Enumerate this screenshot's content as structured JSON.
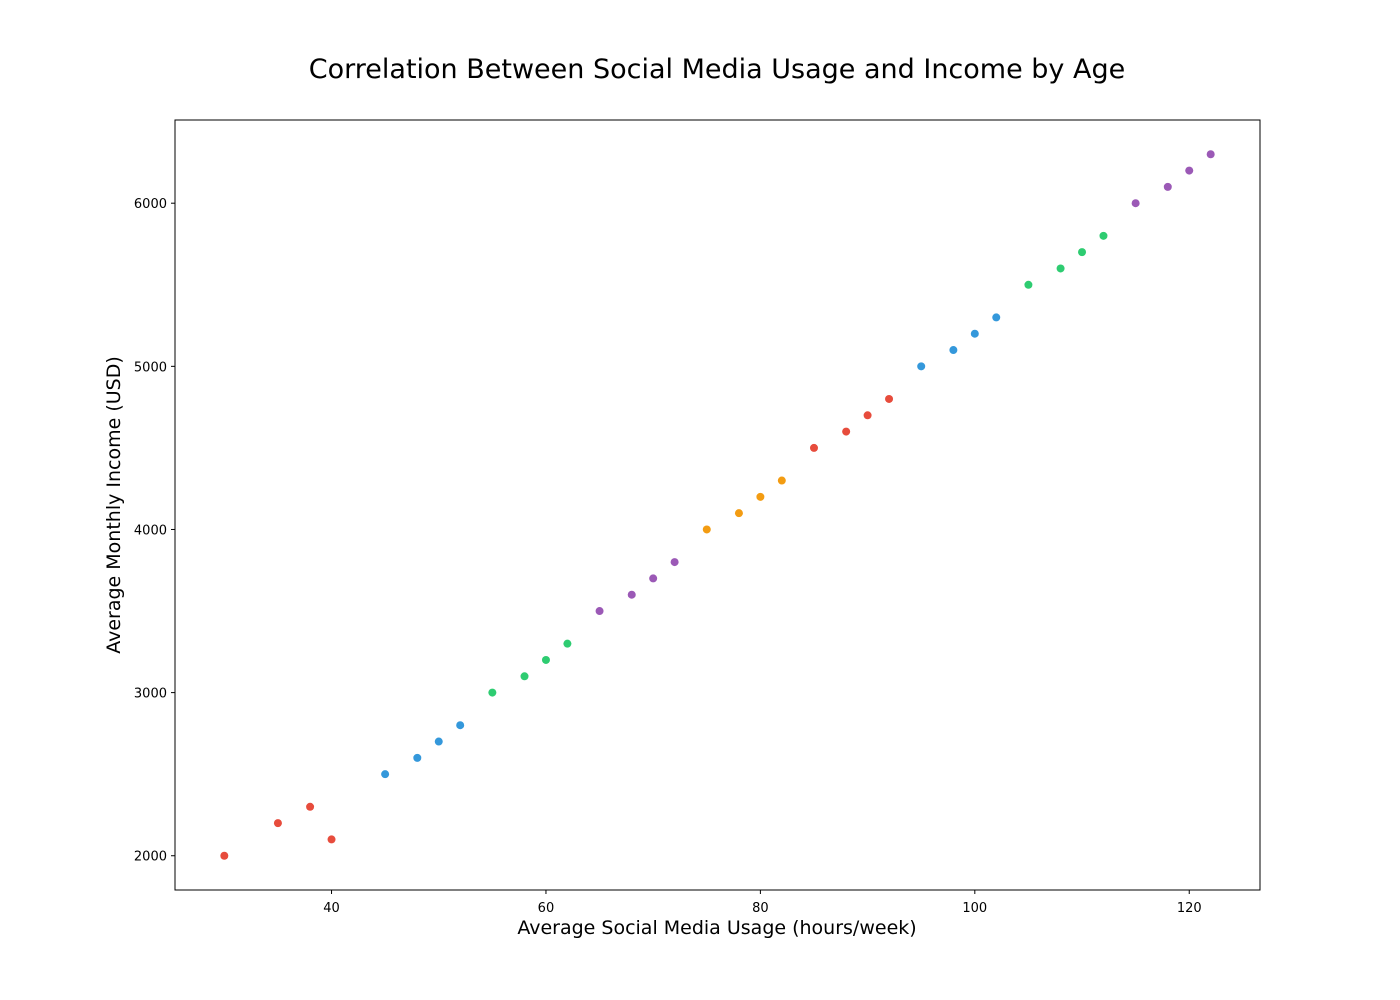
{
  "chart_data": {
    "type": "scatter",
    "title": "Correlation Between Social Media Usage and Income by Age",
    "xlabel": "Average Social Media Usage (hours/week)",
    "ylabel": "Average Monthly Income (USD)",
    "xlim": [
      25.4,
      126.6
    ],
    "ylim": [
      1790,
      6510
    ],
    "xticks": [
      40,
      60,
      80,
      100,
      120
    ],
    "yticks": [
      2000,
      3000,
      4000,
      5000,
      6000
    ],
    "grid": false,
    "legend": "none",
    "series": [
      {
        "color": "#e74c3c",
        "points": [
          [
            30,
            2000
          ],
          [
            35,
            2200
          ],
          [
            38,
            2300
          ],
          [
            40,
            2100
          ]
        ]
      },
      {
        "color": "#3498db",
        "points": [
          [
            45,
            2500
          ],
          [
            48,
            2600
          ],
          [
            50,
            2700
          ],
          [
            52,
            2800
          ]
        ]
      },
      {
        "color": "#2ecc71",
        "points": [
          [
            55,
            3000
          ],
          [
            58,
            3100
          ],
          [
            60,
            3200
          ],
          [
            62,
            3300
          ]
        ]
      },
      {
        "color": "#9b59b6",
        "points": [
          [
            65,
            3500
          ],
          [
            68,
            3600
          ],
          [
            70,
            3700
          ],
          [
            72,
            3800
          ]
        ]
      },
      {
        "color": "#f39c12",
        "points": [
          [
            75,
            4000
          ],
          [
            78,
            4100
          ],
          [
            80,
            4200
          ],
          [
            82,
            4300
          ]
        ]
      },
      {
        "color": "#e74c3c",
        "points": [
          [
            85,
            4500
          ],
          [
            88,
            4600
          ],
          [
            90,
            4700
          ],
          [
            92,
            4800
          ]
        ]
      },
      {
        "color": "#3498db",
        "points": [
          [
            95,
            5000
          ],
          [
            98,
            5100
          ],
          [
            100,
            5200
          ],
          [
            102,
            5300
          ]
        ]
      },
      {
        "color": "#2ecc71",
        "points": [
          [
            105,
            5500
          ],
          [
            108,
            5600
          ],
          [
            110,
            5700
          ],
          [
            112,
            5800
          ]
        ]
      },
      {
        "color": "#9b59b6",
        "points": [
          [
            115,
            6000
          ],
          [
            118,
            6100
          ],
          [
            120,
            6200
          ],
          [
            122,
            6300
          ]
        ]
      }
    ]
  }
}
